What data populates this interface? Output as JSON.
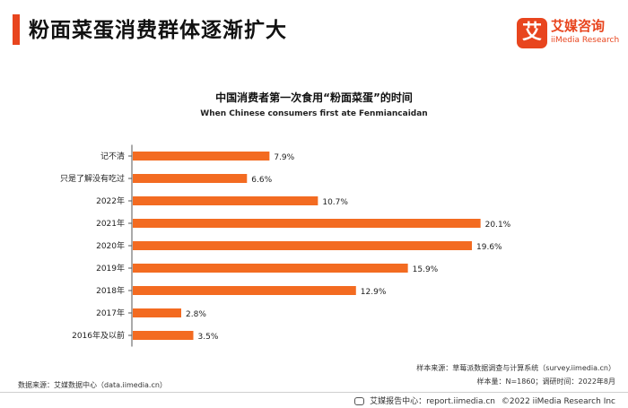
{
  "header": {
    "title": "粉面菜蛋消费群体逐渐扩大",
    "logo_glyph": "艾",
    "logo_cn": "艾媒咨询",
    "logo_en": "iiMedia Research"
  },
  "chart_data": {
    "type": "bar",
    "orientation": "horizontal",
    "title": "中国消费者第一次食用“粉面菜蛋”的时间",
    "subtitle": "When Chinese consumers first ate Fenmiancaidan",
    "categories": [
      "记不清",
      "只是了解没有吃过",
      "2022年",
      "2021年",
      "2020年",
      "2019年",
      "2018年",
      "2017年",
      "2016年及以前"
    ],
    "values": [
      7.9,
      6.6,
      10.7,
      20.1,
      19.6,
      15.9,
      12.9,
      2.8,
      3.5
    ],
    "value_labels": [
      "7.9%",
      "6.6%",
      "10.7%",
      "20.1%",
      "19.6%",
      "15.9%",
      "12.9%",
      "2.8%",
      "3.5%"
    ],
    "unit": "%",
    "xlim": [
      0,
      21
    ],
    "bar_color": "#f36b21",
    "grid": false
  },
  "footer": {
    "data_source": "数据来源：艾媒数据中心（data.iimedia.cn）",
    "sample_source": "样本来源：草莓派数据调查与计算系统（survey.iimedia.cn）",
    "sample_info": "样本量：N=1860；调研时间：2022年8月",
    "report_center": "艾媒报告中心：report.iimedia.cn",
    "copyright": "©2022  iiMedia Research  Inc"
  },
  "colors": {
    "accent": "#e8451e",
    "bar": "#f36b21",
    "axis": "#555555"
  }
}
